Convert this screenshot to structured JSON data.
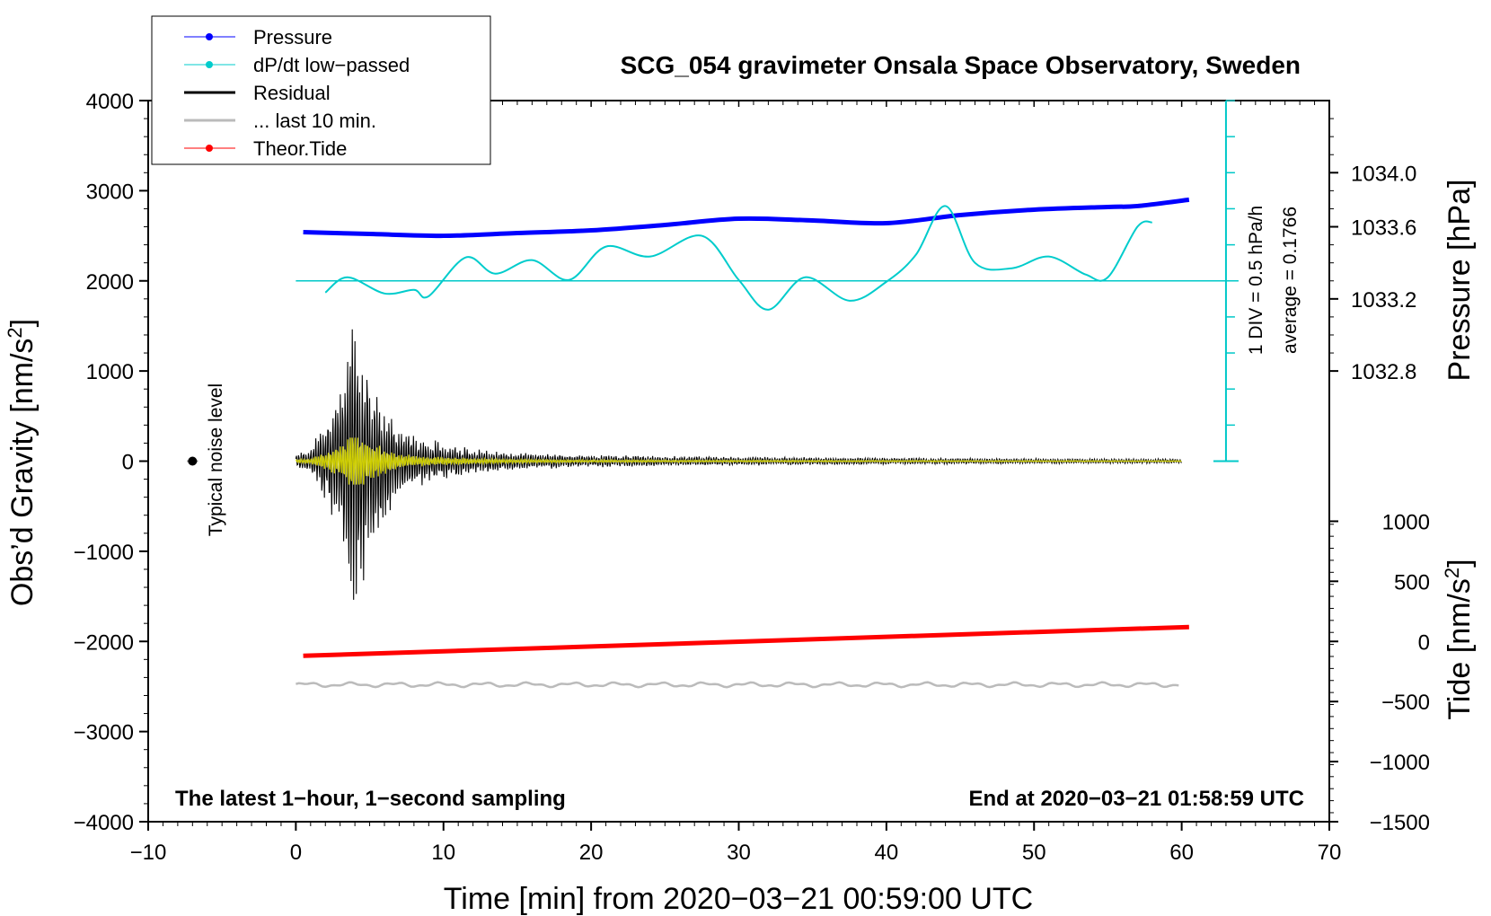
{
  "chart_data": {
    "type": "line",
    "title": "SCG_054 gravimeter Onsala Space Observatory, Sweden",
    "xlabel": "Time [min] from 2020−03−21 00:59:00 UTC",
    "ylabel_left": "Obs’d Gravity [nm/s²]",
    "ylabel_right_top": "Pressure [hPa]",
    "ylabel_right_bottom": "Tide [nm/s²]",
    "xlim": [
      -10,
      70
    ],
    "ylim": [
      -4000,
      4000
    ],
    "x_ticks": [
      -10,
      0,
      10,
      20,
      30,
      40,
      50,
      60,
      70
    ],
    "x_tick_labels": [
      "−10",
      "0",
      "10",
      "20",
      "30",
      "40",
      "50",
      "60",
      "70"
    ],
    "y_ticks": [
      -4000,
      -3000,
      -2000,
      -1000,
      0,
      1000,
      2000,
      3000,
      4000
    ],
    "y_tick_labels": [
      "−4000",
      "−3000",
      "−2000",
      "−1000",
      "0",
      "1000",
      "2000",
      "3000",
      "4000"
    ],
    "pressure_axis": {
      "ticks": [
        1032.8,
        1033.2,
        1033.6,
        1034.0
      ],
      "tick_labels": [
        "1032.8",
        "1033.2",
        "1033.6",
        "1034.0"
      ],
      "gravity_equivalent": [
        1000,
        1800,
        2600,
        3200
      ]
    },
    "tide_axis": {
      "ticks": [
        -1500,
        -1000,
        -500,
        0,
        500,
        1000
      ],
      "tick_labels": [
        "−1500",
        "−1000",
        "−500",
        "0",
        "500",
        "1000"
      ],
      "gravity_equivalent": [
        -4000,
        -3333,
        -2667,
        -2000,
        -1333,
        -667
      ]
    },
    "legend": [
      {
        "label": "Pressure",
        "color": "#0000ff",
        "marker": "dot"
      },
      {
        "label": "dP/dt low−passed",
        "color": "#00cccc",
        "marker": "dot"
      },
      {
        "label": "Residual",
        "color": "#000000",
        "marker": "line"
      },
      {
        "label": "... last 10 min.",
        "color": "#bbbbbb",
        "marker": "line"
      },
      {
        "label": "Theor.Tide",
        "color": "#ff0000",
        "marker": "dot"
      }
    ],
    "series": [
      {
        "name": "Pressure",
        "color": "#0000ff",
        "x": [
          0.5,
          5,
          10,
          15,
          20,
          25,
          30,
          35,
          40,
          45,
          50,
          55,
          57,
          60.5
        ],
        "y": [
          2540,
          2520,
          2500,
          2530,
          2560,
          2620,
          2690,
          2670,
          2640,
          2730,
          2790,
          2820,
          2830,
          2900
        ]
      },
      {
        "name": "dP/dt low−passed",
        "color": "#00cccc",
        "x": [
          2,
          3.5,
          6,
          8,
          9,
          11.5,
          13.5,
          16,
          18.5,
          21,
          24,
          27.5,
          30,
          32,
          34.5,
          37.5,
          40,
          42,
          44,
          46,
          48.5,
          51,
          53.5,
          55,
          57,
          58
        ],
        "y": [
          1870,
          2040,
          1860,
          1900,
          1830,
          2260,
          2080,
          2230,
          2010,
          2380,
          2270,
          2500,
          2010,
          1680,
          2040,
          1780,
          1990,
          2290,
          2830,
          2200,
          2140,
          2270,
          2070,
          2040,
          2600,
          2650
        ]
      },
      {
        "name": "Residual",
        "color": "#000000",
        "note": "oscillation envelope (amplitude vs time)",
        "x": [
          0,
          1,
          2,
          3,
          3.8,
          4.5,
          5.5,
          7,
          9,
          12,
          15,
          20,
          30,
          40,
          50,
          60
        ],
        "amplitude": [
          100,
          150,
          500,
          1000,
          1750,
          1500,
          900,
          400,
          250,
          150,
          100,
          70,
          50,
          40,
          30,
          25
        ]
      },
      {
        "name": "... last 10 min.",
        "color": "#bbbbbb",
        "x": [
          0,
          60
        ],
        "y": [
          -2480,
          -2480
        ]
      },
      {
        "name": "Theor.Tide",
        "color": "#ff0000",
        "x": [
          0.5,
          60.5
        ],
        "y": [
          -2160,
          -1840
        ]
      }
    ],
    "average_line": {
      "y": 2000,
      "x": [
        0,
        64
      ]
    },
    "scale_bar": {
      "x": 63,
      "y_from": 0,
      "y_to": 4000
    },
    "scale_text_1": "1 DIV = 0.5 hPa/h",
    "scale_text_2": "average = 0.1766",
    "noise_marker": {
      "x": -7,
      "y": 0,
      "label": "Typical noise level"
    },
    "footer_left": "The latest 1−hour, 1−second sampling",
    "footer_right": "End at 2020−03−21 01:58:59 UTC"
  }
}
